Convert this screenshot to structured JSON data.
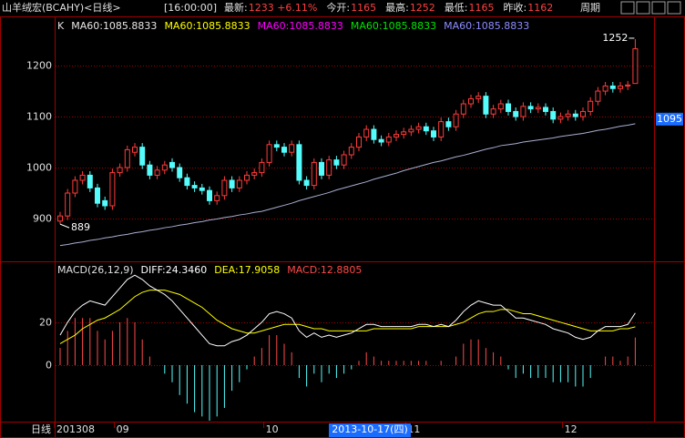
{
  "header": {
    "title": "山羊绒宏(BCAHY)<日线>",
    "time": "[16:00:00]",
    "items": [
      {
        "label": "最新:",
        "value": "1233 +6.11%"
      },
      {
        "label": "今开:",
        "value": "1165"
      },
      {
        "label": "最高:",
        "value": "1252"
      },
      {
        "label": "最低:",
        "value": "1165"
      },
      {
        "label": "昨收:",
        "value": "1162"
      }
    ],
    "period": "周期"
  },
  "chart_data": [
    {
      "type": "candlestick",
      "legend_prefix": "K",
      "legend": [
        {
          "text": "MA60:1085.8833",
          "color": "#e8e8e8"
        },
        {
          "text": "MA60:1085.8833",
          "color": "#ffff00"
        },
        {
          "text": "MA60:1085.8833",
          "color": "#ff00ff"
        },
        {
          "text": "MA60:1085.8833",
          "color": "#00e600"
        },
        {
          "text": "MA60:1085.8833",
          "color": "#8c8cff"
        }
      ],
      "up_color": "#ff3c3c",
      "down_color": "#54fcfc",
      "ylim": [
        816,
        1293
      ],
      "yticks": [
        900,
        1000,
        1100,
        1200
      ],
      "open": [
        895,
        905,
        950,
        975,
        985,
        960,
        935,
        925,
        990,
        1000,
        1030,
        1040,
        1005,
        985,
        995,
        1010,
        1000,
        980,
        965,
        960,
        955,
        935,
        945,
        975,
        960,
        975,
        985,
        990,
        1010,
        1045,
        1040,
        1030,
        1045,
        975,
        965,
        1010,
        985,
        1015,
        1005,
        1025,
        1040,
        1060,
        1075,
        1055,
        1050,
        1060,
        1065,
        1070,
        1075,
        1080,
        1072,
        1060,
        1090,
        1080,
        1105,
        1125,
        1135,
        1140,
        1105,
        1115,
        1125,
        1110,
        1100,
        1120,
        1115,
        1118,
        1110,
        1095,
        1100,
        1105,
        1100,
        1110,
        1130,
        1150,
        1160,
        1155,
        1160,
        1165
      ],
      "high": [
        913,
        958,
        983,
        993,
        993,
        968,
        943,
        998,
        1008,
        1043,
        1048,
        1048,
        1013,
        1003,
        1013,
        1018,
        1008,
        988,
        973,
        968,
        963,
        953,
        983,
        983,
        983,
        993,
        998,
        1018,
        1053,
        1053,
        1048,
        1053,
        1053,
        983,
        1018,
        1018,
        1023,
        1023,
        1033,
        1048,
        1068,
        1083,
        1083,
        1063,
        1068,
        1073,
        1078,
        1083,
        1088,
        1088,
        1080,
        1098,
        1098,
        1113,
        1133,
        1143,
        1148,
        1148,
        1123,
        1133,
        1133,
        1118,
        1128,
        1128,
        1126,
        1126,
        1118,
        1108,
        1113,
        1113,
        1118,
        1138,
        1158,
        1168,
        1168,
        1168,
        1170,
        1252
      ],
      "low": [
        889,
        897,
        942,
        967,
        952,
        922,
        917,
        917,
        982,
        992,
        1022,
        997,
        977,
        977,
        987,
        992,
        972,
        957,
        952,
        947,
        927,
        927,
        937,
        952,
        952,
        967,
        977,
        982,
        1002,
        1032,
        1022,
        1022,
        967,
        957,
        957,
        977,
        977,
        997,
        997,
        1017,
        1032,
        1052,
        1047,
        1042,
        1042,
        1052,
        1057,
        1062,
        1067,
        1064,
        1052,
        1052,
        1072,
        1072,
        1097,
        1117,
        1127,
        1097,
        1097,
        1107,
        1102,
        1092,
        1092,
        1107,
        1107,
        1102,
        1087,
        1087,
        1092,
        1092,
        1092,
        1102,
        1122,
        1142,
        1147,
        1147,
        1152,
        1165
      ],
      "close": [
        905,
        950,
        975,
        985,
        960,
        930,
        925,
        990,
        1000,
        1035,
        1040,
        1005,
        985,
        995,
        1005,
        1000,
        980,
        965,
        960,
        955,
        935,
        945,
        975,
        960,
        975,
        985,
        990,
        1010,
        1045,
        1040,
        1030,
        1045,
        975,
        965,
        1010,
        985,
        1015,
        1005,
        1025,
        1040,
        1060,
        1075,
        1055,
        1050,
        1060,
        1065,
        1070,
        1075,
        1080,
        1072,
        1060,
        1090,
        1080,
        1105,
        1125,
        1135,
        1140,
        1105,
        1115,
        1125,
        1110,
        1100,
        1120,
        1115,
        1118,
        1110,
        1095,
        1100,
        1105,
        1100,
        1110,
        1130,
        1150,
        1160,
        1155,
        1160,
        1162,
        1233
      ],
      "ma": {
        "color": "#a8aed0",
        "values": [
          847,
          849,
          852,
          854,
          857,
          859,
          862,
          864,
          867,
          869,
          872,
          874,
          877,
          879,
          882,
          884,
          887,
          889,
          892,
          894,
          897,
          899,
          902,
          904,
          907,
          909,
          912,
          914,
          918,
          922,
          926,
          930,
          935,
          939,
          943,
          947,
          951,
          956,
          960,
          964,
          968,
          972,
          977,
          981,
          985,
          989,
          994,
          998,
          1002,
          1006,
          1010,
          1013,
          1017,
          1021,
          1024,
          1028,
          1032,
          1036,
          1039,
          1043,
          1045,
          1047,
          1050,
          1052,
          1054,
          1056,
          1058,
          1061,
          1063,
          1065,
          1067,
          1070,
          1073,
          1075,
          1078,
          1081,
          1083,
          1086
        ]
      },
      "high_label": "1252",
      "low_label": "889",
      "cursor_value": 1095,
      "cursor_label": "1095"
    },
    {
      "type": "macd",
      "legend_prefix": "MACD(26,12,9)",
      "ylim": [
        -26.4,
        47.2
      ],
      "yticks": [
        0,
        20
      ],
      "pos_color": "#ff4a4a",
      "neg_color": "#54fcfc",
      "series": [
        {
          "name": "DIFF:24.3460",
          "color": "#ffffff",
          "values": [
            14,
            20,
            25,
            28,
            30,
            29,
            28,
            32,
            36,
            40,
            42,
            40,
            37,
            35,
            33,
            30,
            26,
            22,
            18,
            14,
            10,
            9,
            9,
            11,
            12,
            14,
            17,
            20,
            24,
            25,
            24,
            22,
            16,
            13,
            15,
            13,
            14,
            13,
            14,
            15,
            17,
            19,
            19,
            18,
            18,
            18,
            18,
            18,
            19,
            19,
            18,
            19,
            18,
            21,
            25,
            28,
            30,
            29,
            28,
            28,
            25,
            22,
            22,
            21,
            20,
            19,
            17,
            16,
            15,
            13,
            12,
            13,
            16,
            18,
            18,
            18,
            19,
            24.346
          ]
        },
        {
          "name": "DEA:17.9058",
          "color": "#ffff00",
          "values": [
            10,
            12,
            14,
            17,
            19,
            21,
            22,
            24,
            26,
            29,
            32,
            34,
            35,
            35,
            35,
            34,
            33,
            31,
            29,
            27,
            24,
            21,
            19,
            17,
            16,
            15,
            15,
            16,
            17,
            18,
            19,
            19,
            19,
            18,
            17,
            17,
            16,
            16,
            16,
            16,
            16,
            16,
            17,
            17,
            17,
            17,
            17,
            17,
            18,
            18,
            18,
            18,
            18,
            19,
            20,
            22,
            24,
            25,
            25,
            26,
            26,
            25,
            24,
            24,
            23,
            22,
            21,
            20,
            19,
            18,
            17,
            16,
            16,
            16,
            16,
            17,
            17,
            17.9058
          ]
        },
        {
          "name": "MACD:12.8805",
          "color": "#ff4a4a",
          "values": [
            8,
            16,
            22,
            22,
            22,
            16,
            12,
            16,
            20,
            22,
            20,
            12,
            4,
            0,
            -4,
            -8,
            -14,
            -18,
            -22,
            -24,
            -26,
            -24,
            -20,
            -12,
            -8,
            -2,
            4,
            8,
            14,
            14,
            10,
            6,
            -6,
            -10,
            -4,
            -8,
            -4,
            -6,
            -4,
            -2,
            2,
            6,
            4,
            2,
            2,
            2,
            2,
            2,
            2,
            2,
            0,
            2,
            0,
            4,
            10,
            12,
            12,
            8,
            6,
            4,
            -2,
            -6,
            -4,
            -6,
            -6,
            -6,
            -8,
            -8,
            -8,
            -10,
            -10,
            -6,
            0,
            4,
            4,
            2,
            4,
            12.8805
          ]
        }
      ]
    }
  ],
  "x_axis": {
    "name": "日线",
    "labels": [
      "201308",
      "09",
      "10",
      "11",
      "12"
    ],
    "cursor": "2013-10-17(四)"
  }
}
